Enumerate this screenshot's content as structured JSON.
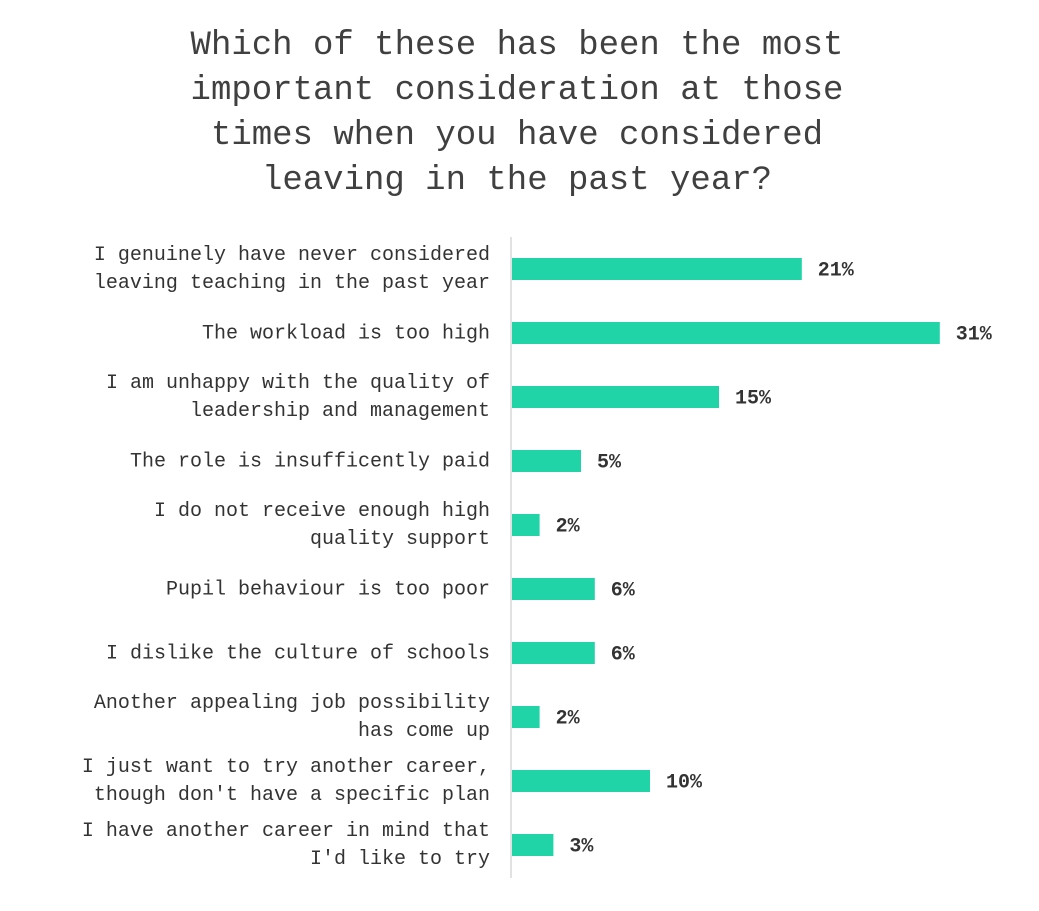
{
  "chart_data": {
    "type": "barh",
    "title": "Which of these has been the most\nimportant consideration at those\ntimes when you have considered\nleaving in the past year?",
    "categories": [
      "I genuinely have never considered\nleaving teaching in the past year",
      "The workload is too high",
      "I am unhappy with the quality of\nleadership and management",
      "The role is insufficently paid",
      "I do not receive enough high\nquality support",
      "Pupil behaviour is too poor",
      "I dislike the culture of schools",
      "Another appealing job possibility\nhas come up",
      "I just want to try another career,\nthough don't have a specific plan",
      "I have another career in mind that\nI'd like to try"
    ],
    "values": [
      21,
      31,
      15,
      5,
      2,
      6,
      6,
      2,
      10,
      3
    ],
    "value_labels": [
      "21%",
      "31%",
      "15%",
      "5%",
      "2%",
      "6%",
      "6%",
      "2%",
      "10%",
      "3%"
    ],
    "color": "#20d4a8"
  }
}
